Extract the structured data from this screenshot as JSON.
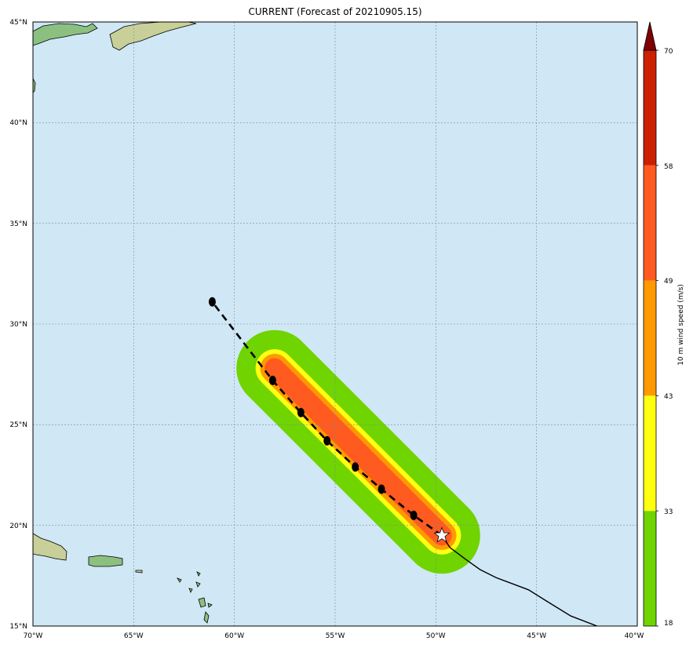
{
  "title": "CURRENT (Forecast of 20210905.15)",
  "colors": {
    "ocean": "#d0e7f5",
    "grid": "#7a8ea0",
    "track": "#000000",
    "land_low": "#8cc080",
    "land_mid": "#c8cf98",
    "land_high": "#2f8a3a"
  },
  "map": {
    "lon_range": [
      -70,
      -40
    ],
    "lat_range": [
      15,
      45
    ],
    "lon_ticks": [
      "70°W",
      "65°W",
      "60°W",
      "55°W",
      "50°W",
      "45°W",
      "40°W"
    ],
    "lat_ticks": [
      "15°N",
      "20°N",
      "25°N",
      "30°N",
      "35°N",
      "40°N",
      "45°N"
    ],
    "grid": true
  },
  "colorbar": {
    "label": "10 m wind speed (m/s)",
    "levels": [
      18,
      33,
      43,
      49,
      58,
      70
    ],
    "colors": [
      "#6fd400",
      "#ffff10",
      "#ff9900",
      "#ff5a20",
      "#cc2000",
      "#800000"
    ]
  },
  "forecast_track": [
    {
      "lon": -49.7,
      "lat": 19.5
    },
    {
      "lon": -51.1,
      "lat": 20.5
    },
    {
      "lon": -52.7,
      "lat": 21.8
    },
    {
      "lon": -54.0,
      "lat": 22.9
    },
    {
      "lon": -55.4,
      "lat": 24.2
    },
    {
      "lon": -56.7,
      "lat": 25.6
    },
    {
      "lon": -58.1,
      "lat": 27.2
    },
    {
      "lon": -61.1,
      "lat": 31.1
    }
  ],
  "past_track": [
    {
      "lon": -49.7,
      "lat": 19.5
    },
    {
      "lon": -49.3,
      "lat": 18.9
    },
    {
      "lon": -48.5,
      "lat": 18.3
    },
    {
      "lon": -47.8,
      "lat": 17.8
    },
    {
      "lon": -47.0,
      "lat": 17.4
    },
    {
      "lon": -45.4,
      "lat": 16.8
    },
    {
      "lon": -44.6,
      "lat": 16.3
    },
    {
      "lon": -43.3,
      "lat": 15.5
    },
    {
      "lon": -42.0,
      "lat": 15.0
    }
  ],
  "wind_swath": {
    "start": {
      "lon": -49.7,
      "lat": 19.5
    },
    "end": {
      "lon": -58.0,
      "lat": 27.8
    },
    "bands": [
      {
        "level": 18,
        "radius_deg": 1.9
      },
      {
        "level": 33,
        "radius_deg": 0.95
      },
      {
        "level": 43,
        "radius_deg": 0.72
      },
      {
        "level": 49,
        "radius_deg": 0.5
      }
    ]
  }
}
